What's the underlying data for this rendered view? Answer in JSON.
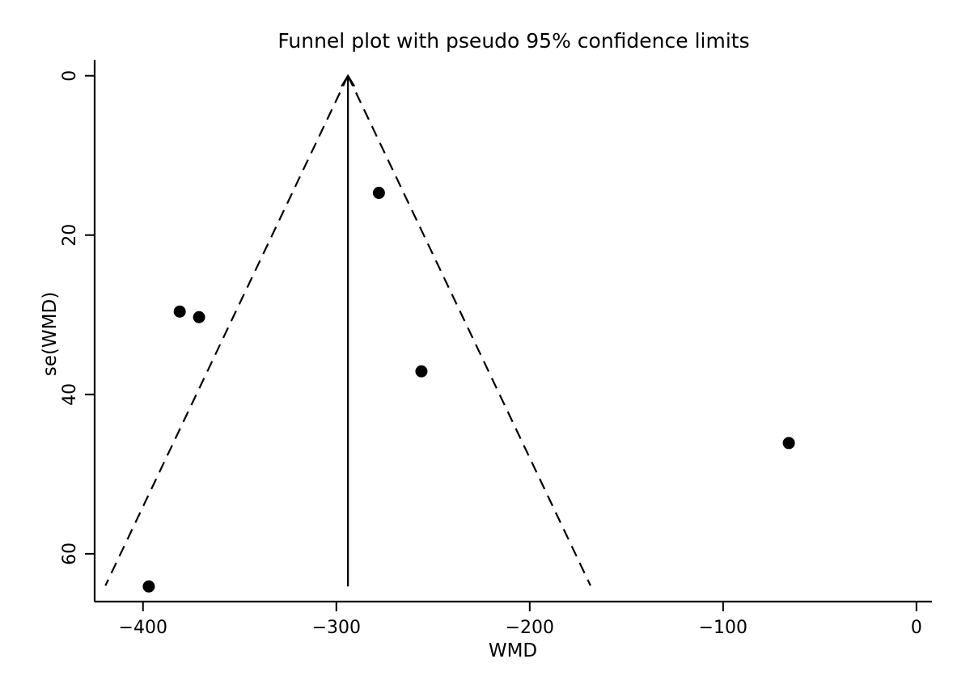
{
  "chart_data": {
    "type": "scatter",
    "title": "Funnel plot with pseudo 95% confidence limits",
    "xlabel": "WMD",
    "ylabel": "se(WMD)",
    "xlim": [
      -425,
      8
    ],
    "ylim": [
      -2,
      66
    ],
    "y_reversed": true,
    "grid": false,
    "x_ticks": [
      -400,
      -300,
      -200,
      -100,
      0
    ],
    "x_tick_labels": [
      "−400",
      "−300",
      "−200",
      "−100",
      "0"
    ],
    "y_ticks": [
      0,
      20,
      40,
      60
    ],
    "y_tick_labels": [
      "0",
      "20",
      "40",
      "60"
    ],
    "pooled_estimate": -294,
    "se_max": 64,
    "points": [
      {
        "x": -278,
        "y": 14.7
      },
      {
        "x": -381,
        "y": 29.6
      },
      {
        "x": -371,
        "y": 30.3
      },
      {
        "x": -256,
        "y": 37.1
      },
      {
        "x": -66,
        "y": 46.1
      },
      {
        "x": -397,
        "y": 64.1
      }
    ],
    "colors": {
      "points": "#000000",
      "lines": "#000000"
    }
  }
}
